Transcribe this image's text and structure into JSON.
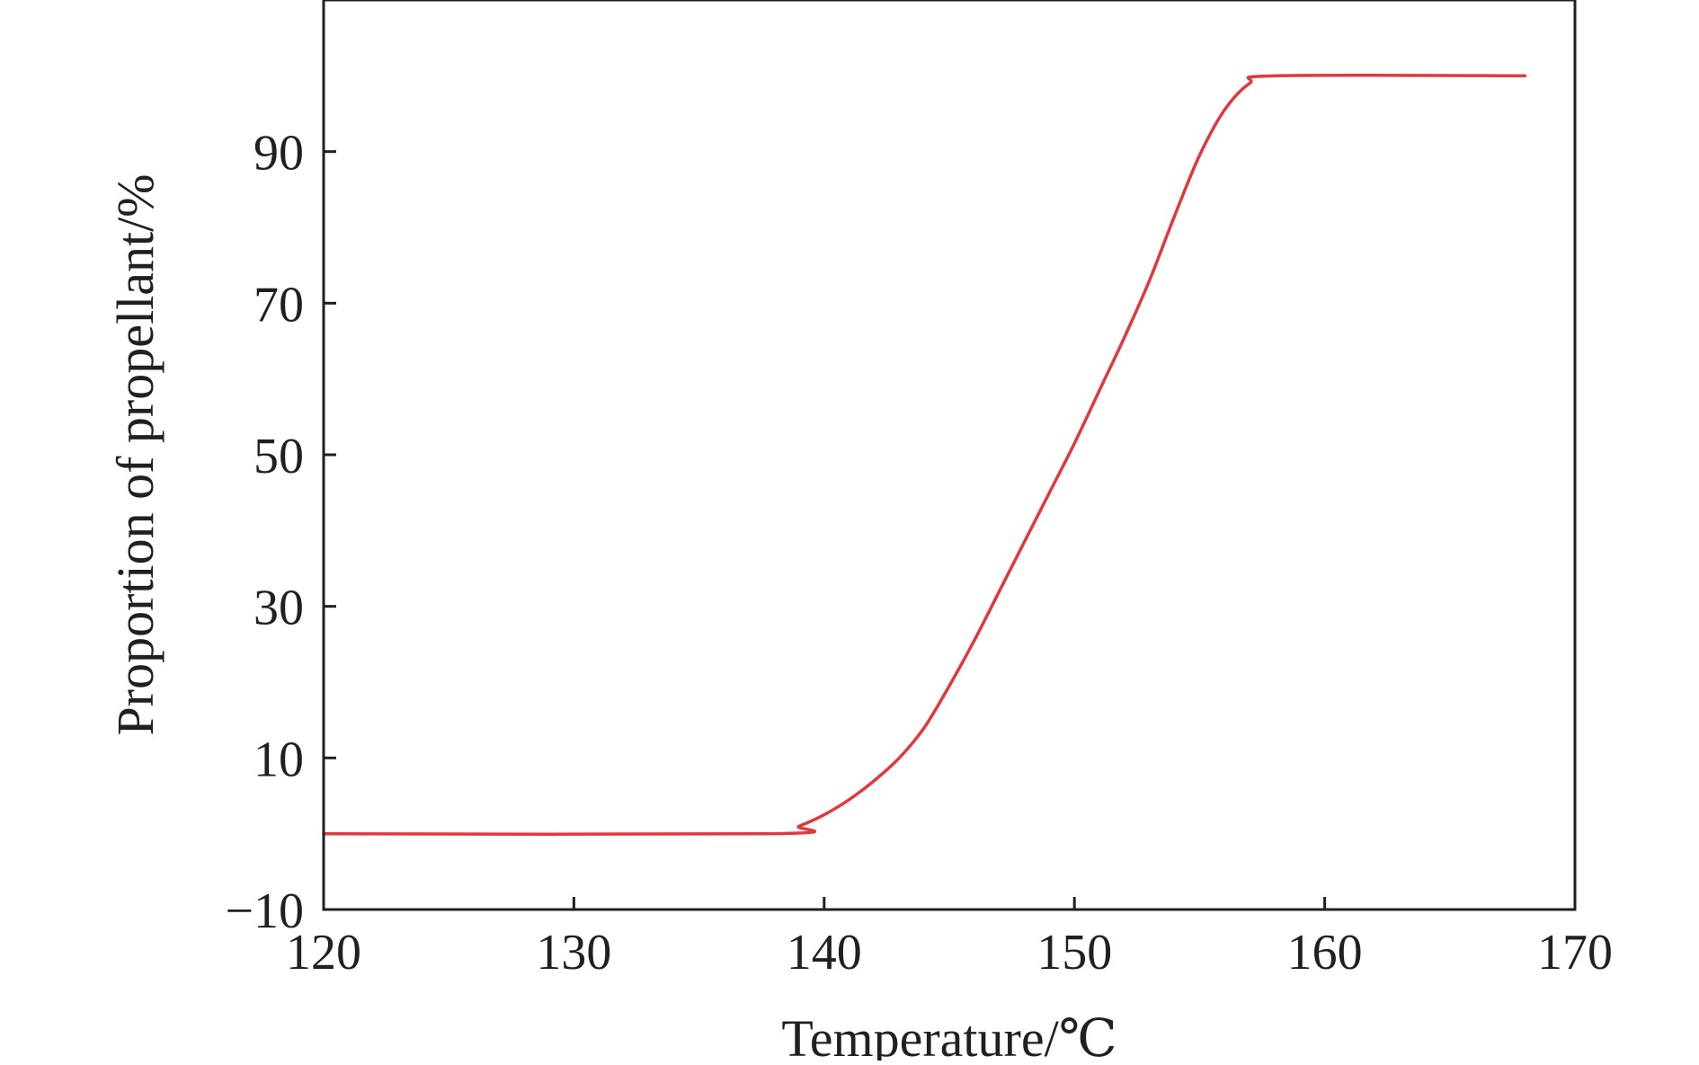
{
  "chart_data": {
    "type": "line",
    "xlabel": "Temperature/℃",
    "ylabel": "Proportion of propellant/%",
    "xlim": [
      120,
      170
    ],
    "ylim": [
      -10,
      110
    ],
    "xticks": [
      120,
      130,
      140,
      150,
      160,
      170
    ],
    "xtick_labels": [
      "120",
      "130",
      "140",
      "150",
      "160",
      "170"
    ],
    "yticks": [
      -10,
      10,
      30,
      50,
      70,
      90
    ],
    "ytick_labels": [
      "−10",
      "10",
      "30",
      "50",
      "70",
      "90"
    ],
    "grid": false,
    "line_color": "#e0383d",
    "axis_color": "#231f20",
    "series": [
      {
        "x": [
          120,
          138,
          139,
          140,
          141,
          142,
          143,
          144,
          145,
          146,
          147,
          148,
          149,
          150,
          151,
          152,
          153,
          154,
          155,
          156,
          157,
          158,
          168
        ],
        "y": [
          0,
          0,
          1,
          2.5,
          4.5,
          7,
          10,
          14,
          19.5,
          25.5,
          32,
          38.5,
          45,
          51.5,
          58.5,
          65.5,
          73,
          81.5,
          89.5,
          95.5,
          99,
          100,
          100
        ]
      }
    ]
  }
}
